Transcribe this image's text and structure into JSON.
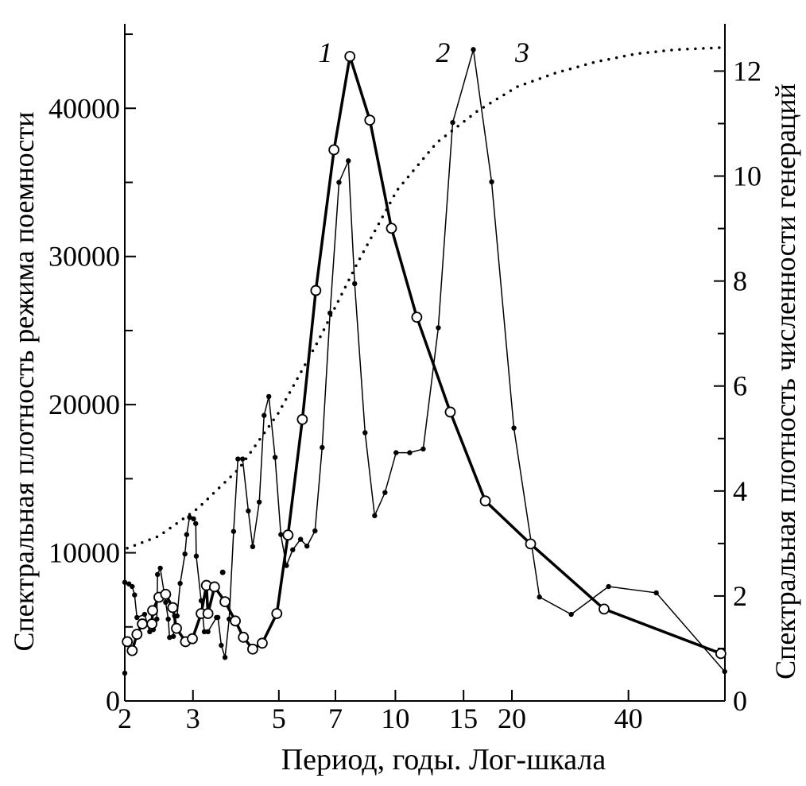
{
  "chart_data": {
    "type": "line",
    "xlabel": "Период, годы. Лог-шкала",
    "ylabel_left": "Спектральная плотность режима поемности",
    "ylabel_right": "Спектральная плотность численности генераций",
    "x_scale": "log",
    "xlim": [
      2,
      71
    ],
    "ylim_left": [
      0,
      45700
    ],
    "ylim_right": [
      0,
      12.9
    ],
    "x_ticks": [
      2,
      3,
      5,
      7,
      10,
      15,
      20,
      40
    ],
    "y_ticks_left": [
      0,
      10000,
      20000,
      30000,
      40000
    ],
    "y_ticks_right": [
      0,
      2,
      4,
      6,
      8,
      10,
      12
    ],
    "grid": false,
    "series": [
      {
        "name": "1",
        "axis": "left",
        "style": "bold-open-circles",
        "x": [
          2.03,
          2.09,
          2.15,
          2.22,
          2.35,
          2.36,
          2.45,
          2.55,
          2.66,
          2.72,
          2.87,
          2.99,
          3.15,
          3.25,
          3.28,
          3.41,
          3.63,
          3.86,
          4.05,
          4.28,
          4.53,
          4.94,
          5.28,
          5.75,
          6.23,
          6.94,
          7.63,
          8.59,
          9.77,
          11.36,
          13.86,
          17.07,
          22.35,
          34.6,
          69.3
        ],
        "y": [
          4000,
          3400,
          4500,
          5200,
          5200,
          6100,
          7000,
          7200,
          6300,
          4900,
          4000,
          4200,
          5900,
          7800,
          5900,
          7700,
          6700,
          5400,
          4300,
          3500,
          3900,
          5900,
          11200,
          19000,
          27700,
          37200,
          43500,
          39200,
          31900,
          25900,
          19500,
          13500,
          10600,
          6200,
          3200
        ]
      },
      {
        "name": "2",
        "axis": "right",
        "style": "thin-dots",
        "x": [
          2.0,
          2.0,
          2.05,
          2.09,
          2.12,
          2.15,
          2.25,
          2.32,
          2.37,
          2.42,
          2.43,
          2.47,
          2.55,
          2.59,
          2.61,
          2.67,
          2.69,
          2.73,
          2.78,
          2.86,
          2.89,
          2.94,
          3.01,
          3.05,
          3.06,
          3.15,
          3.21,
          3.28,
          3.45,
          3.48,
          3.55,
          3.63,
          3.72,
          3.82,
          3.92,
          4.03,
          4.17,
          4.28,
          4.45,
          4.58,
          4.71,
          4.89,
          5.06,
          5.23,
          5.43,
          5.69,
          5.91,
          6.2,
          6.47,
          6.78,
          7.15,
          7.56,
          7.85,
          8.35,
          8.84,
          9.4,
          10.04,
          10.89,
          11.8,
          12.91,
          14.06,
          15.9,
          17.73,
          20.24,
          23.56,
          28.46,
          35.54,
          47.2,
          70.9
        ],
        "y": [
          0.53,
          2.26,
          2.23,
          2.18,
          2.02,
          1.59,
          1.65,
          1.32,
          1.36,
          1.56,
          2.41,
          2.53,
          1.88,
          1.56,
          1.21,
          1.23,
          1.62,
          1.62,
          2.24,
          2.8,
          3.17,
          3.5,
          3.47,
          3.38,
          2.76,
          1.91,
          1.32,
          1.32,
          1.59,
          1.59,
          1.06,
          0.83,
          1.56,
          3.23,
          4.61,
          4.61,
          3.62,
          2.94,
          3.79,
          5.44,
          5.8,
          4.64,
          3.17,
          2.58,
          2.88,
          3.08,
          2.95,
          3.24,
          4.83,
          7.39,
          9.88,
          10.29,
          7.95,
          5.11,
          3.53,
          3.97,
          4.73,
          4.73,
          4.8,
          7.11,
          11.02,
          12.41,
          9.89,
          5.2,
          1.98,
          1.65,
          2.18,
          2.06,
          0.56
        ],
        "extra_points": [
          {
            "x": 3.58,
            "y": 2.45
          }
        ]
      },
      {
        "name": "3",
        "axis": "right",
        "style": "dotted",
        "x": [
          2.03,
          2.45,
          3.09,
          3.94,
          4.98,
          6.31,
          8.0,
          10.1,
          12.8,
          16.3,
          20.6,
          26.1,
          33.1,
          42.0,
          53.1,
          71.3
        ],
        "y": [
          2.91,
          3.14,
          3.67,
          4.42,
          5.48,
          6.85,
          8.36,
          9.73,
          10.64,
          11.24,
          11.7,
          11.97,
          12.18,
          12.33,
          12.41,
          12.45
        ]
      }
    ],
    "curve_labels": [
      {
        "text": "1",
        "x": 7.6
      },
      {
        "text": "2",
        "x": 15.3
      },
      {
        "text": "3",
        "x": 24.5
      }
    ]
  }
}
